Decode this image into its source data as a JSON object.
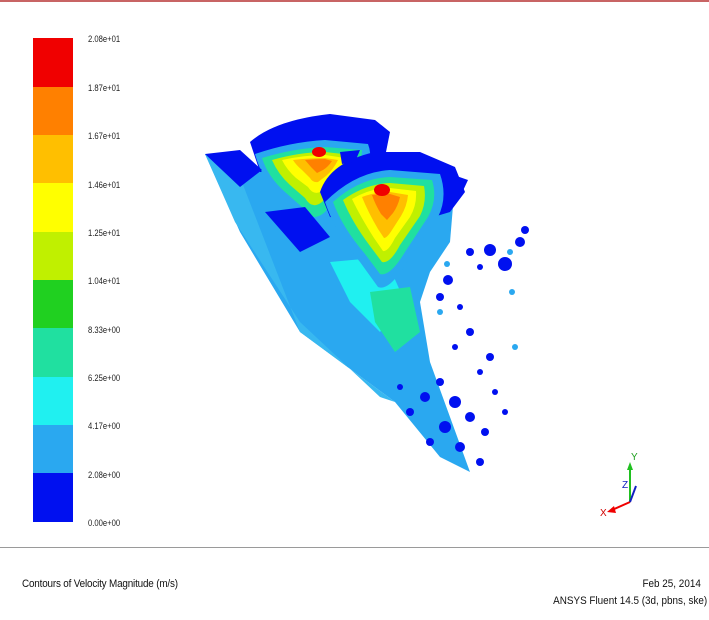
{
  "legend": {
    "labels": [
      "2.08e+01",
      "1.87e+01",
      "1.67e+01",
      "1.46e+01",
      "1.25e+01",
      "1.04e+01",
      "8.33e+00",
      "6.25e+00",
      "4.17e+00",
      "2.08e+00",
      "0.00e+00"
    ],
    "colors": [
      "#f00000",
      "#ff8000",
      "#ffbf00",
      "#ffff00",
      "#c0f000",
      "#20d020",
      "#20e0a0",
      "#20f0f0",
      "#2aa8f0",
      "#0010f0"
    ]
  },
  "axes": {
    "x": "X",
    "y": "Y",
    "z": "Z"
  },
  "caption": {
    "title": "Contours of Velocity Magnitude (m/s)",
    "date": "Feb 25, 2014",
    "program": "ANSYS Fluent 14.5 (3d, pbns, ske)"
  }
}
